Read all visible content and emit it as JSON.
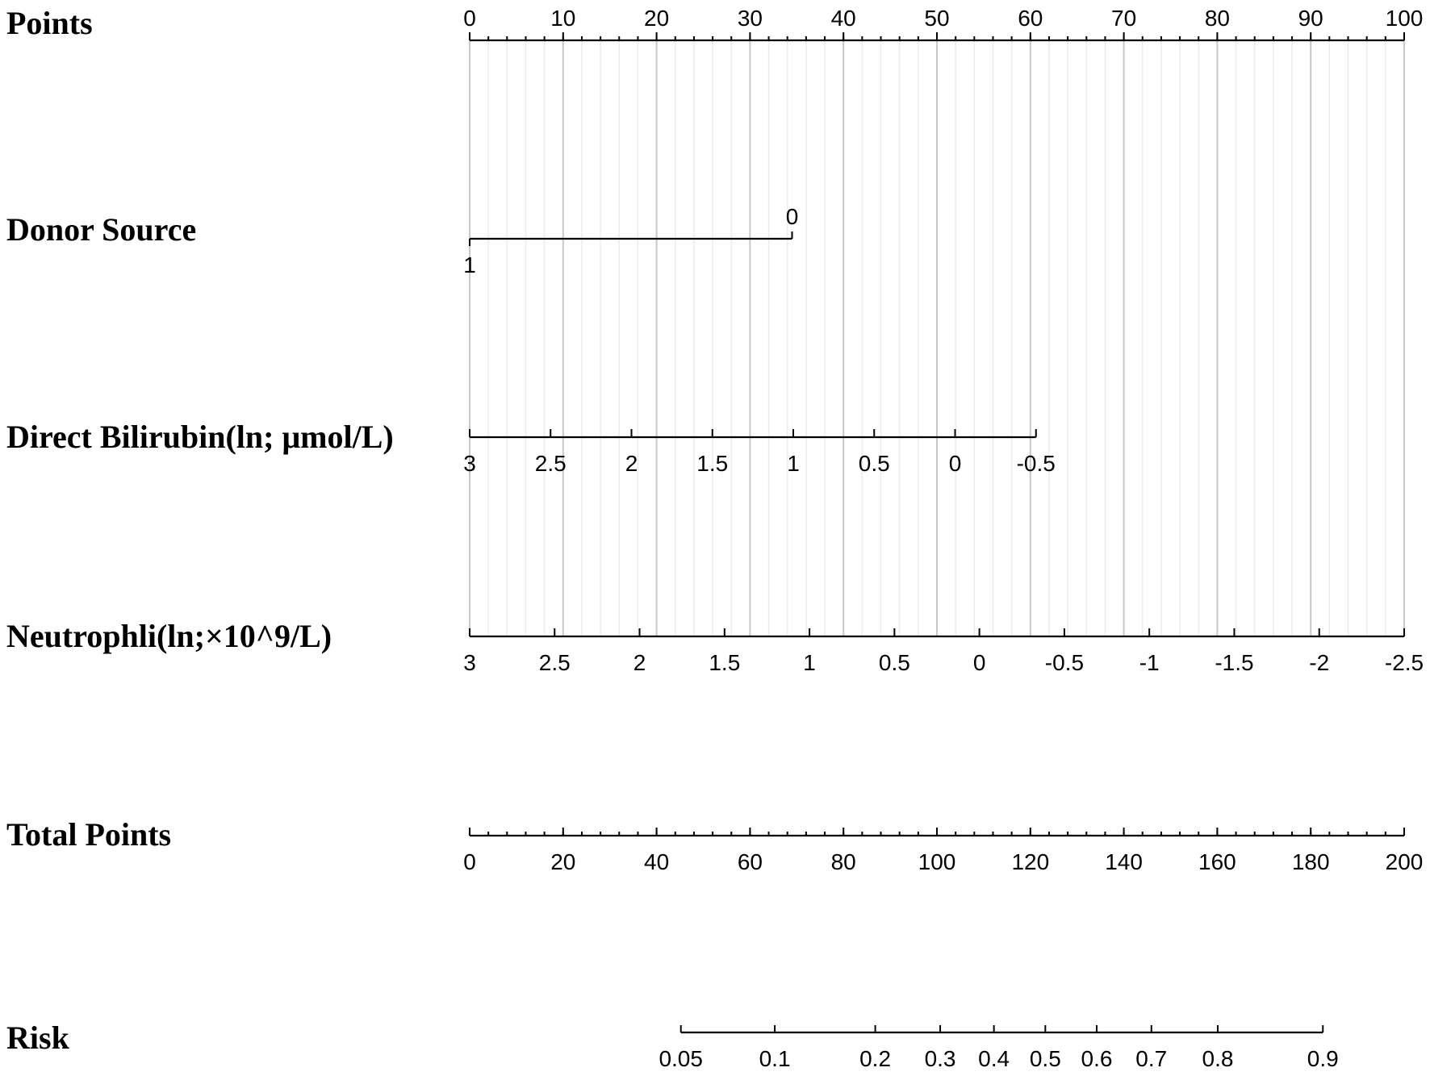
{
  "chart_data": {
    "type": "nomogram",
    "title": "",
    "grid": true,
    "rows": [
      {
        "id": "points",
        "label": "Points",
        "scale": "linear",
        "points_range": [
          0,
          100
        ],
        "value_range": [
          0,
          100
        ],
        "major_ticks": [
          0,
          10,
          20,
          30,
          40,
          50,
          60,
          70,
          80,
          90,
          100
        ],
        "minor_step": 2,
        "label_position": "above"
      },
      {
        "id": "donor_source",
        "label": "Donor Source",
        "scale": "categorical",
        "categories": [
          {
            "label": "1",
            "points": 0,
            "label_position": "below"
          },
          {
            "label": "0",
            "points": 34.5,
            "label_position": "above"
          }
        ]
      },
      {
        "id": "direct_bilirubin",
        "label": "Direct Bilirubin(ln; μmol/L)",
        "scale": "linear",
        "value_range": [
          3,
          -0.5
        ],
        "points_range": [
          0,
          60.6
        ],
        "major_ticks": [
          3,
          2.5,
          2,
          1.5,
          1,
          0.5,
          0,
          -0.5
        ],
        "tick_labels": [
          "3",
          "2.5",
          "2",
          "1.5",
          "1",
          "0.5",
          "0",
          "-0.5"
        ],
        "label_position": "below"
      },
      {
        "id": "neutrophil",
        "label": "Neutrophli(ln;×10^9/L)",
        "scale": "linear",
        "value_range": [
          3,
          -2.5
        ],
        "points_range": [
          0,
          100
        ],
        "major_ticks": [
          3,
          2.5,
          2,
          1.5,
          1,
          0.5,
          0,
          -0.5,
          -1,
          -1.5,
          -2,
          -2.5
        ],
        "tick_labels": [
          "3",
          "2.5",
          "2",
          "1.5",
          "1",
          "0.5",
          "0",
          "-0.5",
          "-1",
          "-1.5",
          "-2",
          "-2.5"
        ],
        "label_position": "below"
      },
      {
        "id": "total_points",
        "label": "Total Points",
        "scale": "linear",
        "value_range": [
          0,
          200
        ],
        "points_range": [
          0,
          100
        ],
        "major_ticks": [
          0,
          20,
          40,
          60,
          80,
          100,
          120,
          140,
          160,
          180,
          200
        ],
        "minor_step": 4,
        "label_position": "below"
      },
      {
        "id": "risk",
        "label": "Risk",
        "scale": "logit",
        "ticks": [
          {
            "label": "0.05",
            "total_points": 45.2
          },
          {
            "label": "0.1",
            "total_points": 65.3
          },
          {
            "label": "0.2",
            "total_points": 86.8
          },
          {
            "label": "0.3",
            "total_points": 100.7
          },
          {
            "label": "0.4",
            "total_points": 112.2
          },
          {
            "label": "0.5",
            "total_points": 123.2
          },
          {
            "label": "0.6",
            "total_points": 134.2
          },
          {
            "label": "0.7",
            "total_points": 145.9
          },
          {
            "label": "0.8",
            "total_points": 160.1
          },
          {
            "label": "0.9",
            "total_points": 182.6
          }
        ],
        "label_position": "below"
      }
    ]
  }
}
